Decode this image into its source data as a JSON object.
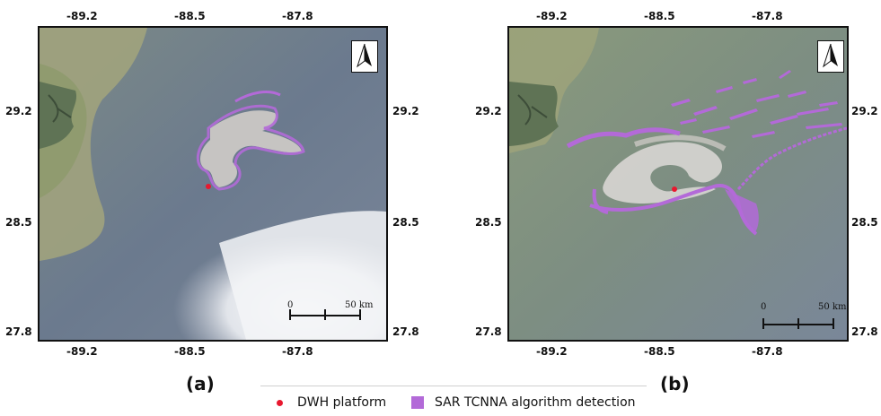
{
  "panels": [
    {
      "caption": "(a)",
      "x_ticks": [
        "-89.2",
        "-88.5",
        "-87.8"
      ],
      "y_ticks": [
        "29.2",
        "28.5",
        "27.8"
      ],
      "scalebar": {
        "start": "0",
        "end": "50 km"
      },
      "north_arrow": "north-arrow-icon"
    },
    {
      "caption": "(b)",
      "x_ticks": [
        "-89.2",
        "-88.5",
        "-87.8"
      ],
      "y_ticks": [
        "29.2",
        "28.5",
        "27.8"
      ],
      "scalebar": {
        "start": "0",
        "end": "50 km"
      },
      "north_arrow": "north-arrow-icon"
    }
  ],
  "legend": {
    "platform": {
      "label": "DWH platform",
      "color": "#e8182f",
      "icon": "red-dot-marker"
    },
    "detection": {
      "label": "SAR TCNNA algorithm detection",
      "color": "#b36ad8",
      "icon": "purple-square-swatch"
    }
  },
  "colors": {
    "sea": "#6f7f93",
    "land": "#6d7f60",
    "sediment": "#a9a77d",
    "oil_slick": "#c9c6c3",
    "frame": "#111111"
  }
}
